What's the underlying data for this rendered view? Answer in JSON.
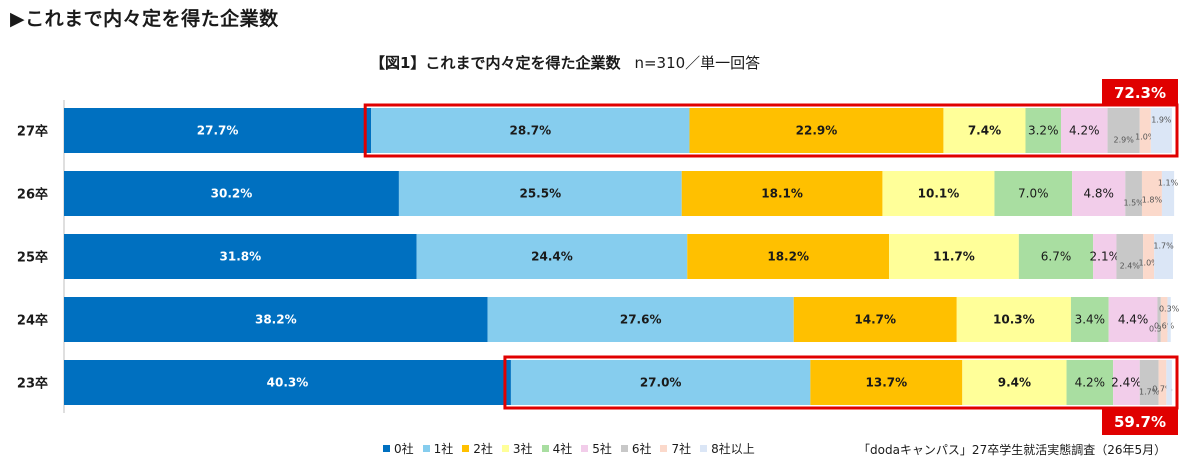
{
  "page": {
    "heading": "▶これまで内々定を得た企業数"
  },
  "chart_data": {
    "type": "bar",
    "orientation": "horizontal",
    "stacked": true,
    "title": "【図1】これまで内々定を得た企業数",
    "subtitle": "n=310／単一回答",
    "categories": [
      "27卒",
      "26卒",
      "25卒",
      "24卒",
      "23卒"
    ],
    "series": [
      {
        "name": "0社",
        "color": "#0070c0",
        "values": [
          27.7,
          30.2,
          31.8,
          38.2,
          40.3
        ],
        "labels": [
          "27.7%",
          "30.2%",
          "31.8%",
          "38.2%",
          "40.3%"
        ]
      },
      {
        "name": "1社",
        "color": "#86cdee",
        "values": [
          28.7,
          25.5,
          24.4,
          27.6,
          27.0
        ],
        "labels": [
          "28.7%",
          "25.5%",
          "24.4%",
          "27.6%",
          "27.0%"
        ]
      },
      {
        "name": "2社",
        "color": "#ffc000",
        "values": [
          22.9,
          18.1,
          18.2,
          14.7,
          13.7
        ],
        "labels": [
          "22.9%",
          "18.1%",
          "18.2%",
          "14.7%",
          "13.7%"
        ]
      },
      {
        "name": "3社",
        "color": "#ffff99",
        "values": [
          7.4,
          10.1,
          11.7,
          10.3,
          9.4
        ],
        "labels": [
          "7.4%",
          "10.1%",
          "11.7%",
          "10.3%",
          "9.4%"
        ]
      },
      {
        "name": "4社",
        "color": "#a9dea1",
        "values": [
          3.2,
          7.0,
          6.7,
          3.4,
          4.2
        ],
        "labels": [
          "3.2%",
          "7.0%",
          "6.7%",
          "3.4%",
          "4.2%"
        ]
      },
      {
        "name": "5社",
        "color": "#f2cdea",
        "values": [
          4.2,
          4.8,
          2.1,
          4.4,
          2.4
        ],
        "labels": [
          "4.2%",
          "4.8%",
          "2.1%",
          "4.4%",
          "2.4%"
        ]
      },
      {
        "name": "6社",
        "color": "#c8c8c8",
        "values": [
          2.9,
          1.5,
          2.4,
          0.3,
          1.7
        ],
        "labels": [
          "2.9%",
          "1.5%",
          "2.4%",
          "0.3%",
          "1.7%"
        ]
      },
      {
        "name": "7社",
        "color": "#fbd9cb",
        "values": [
          1.0,
          1.8,
          1.0,
          0.6,
          0.7
        ],
        "labels": [
          "1.0%",
          "1.8%",
          "1.0%",
          "0.6%",
          "0.7%"
        ]
      },
      {
        "name": "8社以上",
        "color": "#dbe6f6",
        "values": [
          1.9,
          1.1,
          1.7,
          0.3,
          0.5
        ],
        "labels": [
          "1.9%",
          "1.1%",
          "1.7%",
          "0.3%",
          ""
        ]
      }
    ],
    "xlim": [
      0,
      100
    ],
    "highlights": [
      {
        "category": "27卒",
        "from_series": "1社",
        "label": "72.3%",
        "label_position": "above"
      },
      {
        "category": "23卒",
        "from_series": "1社",
        "label": "59.7%",
        "label_position": "below"
      }
    ],
    "highlight_color": "#e00000",
    "legend_position": "bottom"
  },
  "source_note": "「dodaキャンパス」27卒学生就活実態調査（26年5月）"
}
